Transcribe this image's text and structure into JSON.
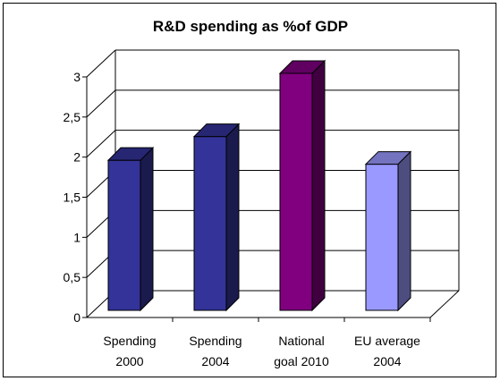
{
  "chart_data": {
    "type": "bar",
    "title": "R&D spending as %of GDP",
    "categories": [
      [
        "Spending",
        "2000"
      ],
      [
        "Spending",
        "2004"
      ],
      [
        "National",
        "goal 2010"
      ],
      [
        "EU average",
        "2004"
      ]
    ],
    "values": [
      1.9,
      2.2,
      3.0,
      1.85
    ],
    "bar_colors": [
      "#333399",
      "#333399",
      "#800080",
      "#9999ff"
    ],
    "y_ticks": [
      "0",
      "0,5",
      "1",
      "1,5",
      "2",
      "2,5",
      "3"
    ],
    "ylim": [
      0,
      3
    ],
    "grid": true,
    "legend": "none",
    "xlabel": "",
    "ylabel": ""
  }
}
